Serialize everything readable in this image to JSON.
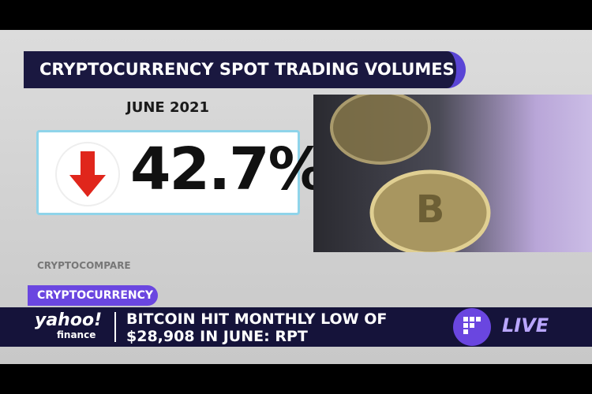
{
  "graphic": {
    "title": "CRYPTOCURRENCY SPOT TRADING VOLUMES",
    "period": "JUNE 2021",
    "change": "42.7%",
    "source": "CRYPTOCOMPARE"
  },
  "lower_third": {
    "tag": "CRYPTOCURRENCY",
    "logo_main": "yahoo!",
    "logo_sub": "finance",
    "headline_line1": "BITCOIN HIT MONTHLY LOW OF",
    "headline_line2": "$28,908 IN JUNE: RPT",
    "live": "LIVE"
  }
}
